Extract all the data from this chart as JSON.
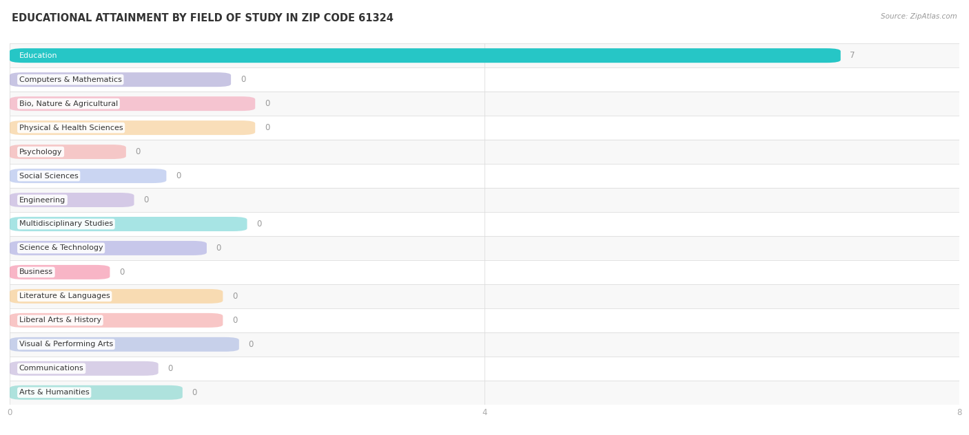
{
  "title": "EDUCATIONAL ATTAINMENT BY FIELD OF STUDY IN ZIP CODE 61324",
  "source": "Source: ZipAtlas.com",
  "categories": [
    "Education",
    "Computers & Mathematics",
    "Bio, Nature & Agricultural",
    "Physical & Health Sciences",
    "Psychology",
    "Social Sciences",
    "Engineering",
    "Multidisciplinary Studies",
    "Science & Technology",
    "Business",
    "Literature & Languages",
    "Liberal Arts & History",
    "Visual & Performing Arts",
    "Communications",
    "Arts & Humanities"
  ],
  "values": [
    7,
    0,
    0,
    0,
    0,
    0,
    0,
    0,
    0,
    0,
    0,
    0,
    0,
    0,
    0
  ],
  "bar_colors": [
    "#26c6c6",
    "#9b96cc",
    "#f49ab0",
    "#f5c480",
    "#f4a0a0",
    "#a0b4e8",
    "#b8a4d8",
    "#60cece",
    "#a0a0e0",
    "#f47898",
    "#f8c47a",
    "#f49898",
    "#a0b0e0",
    "#b8a8d4",
    "#72d0c8"
  ],
  "xlim": [
    0,
    8
  ],
  "xticks": [
    0,
    4,
    8
  ],
  "background_color": "#ffffff",
  "row_colors": [
    "#f8f8f8",
    "#ffffff"
  ],
  "grid_color": "#dddddd",
  "value_label_color": "#999999",
  "title_color": "#333333",
  "label_color": "#333333",
  "label_fontsize": 8.0,
  "value_fontsize": 8.5,
  "title_fontsize": 10.5
}
